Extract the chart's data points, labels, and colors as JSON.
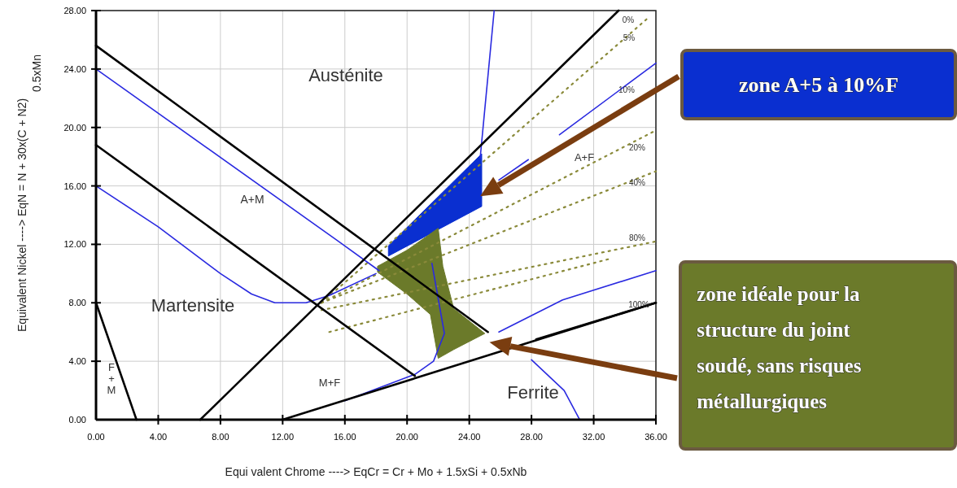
{
  "chart_data": {
    "type": "line",
    "xlabel": "Equi valent Chrome ----> EqCr = Cr + Mo + 1.5xSi + 0.5xNb",
    "ylabel": "Equivalent Nickel ----> EqN = N + 30x(C + N2)\n0.5xMn",
    "xlim": [
      0,
      36
    ],
    "ylim": [
      0,
      28
    ],
    "xticks": [
      {
        "value": 0,
        "label": "0.00"
      },
      {
        "value": 4,
        "label": "4.00"
      },
      {
        "value": 8,
        "label": "8.00"
      },
      {
        "value": 12,
        "label": "12.00"
      },
      {
        "value": 16,
        "label": "16.00"
      },
      {
        "value": 20,
        "label": "20.00"
      },
      {
        "value": 24,
        "label": "24.00"
      },
      {
        "value": 28,
        "label": "28.00"
      },
      {
        "value": 32,
        "label": "32.00"
      },
      {
        "value": 36,
        "label": "36.00"
      }
    ],
    "yticks": [
      {
        "value": 0,
        "label": "0.00"
      },
      {
        "value": 4,
        "label": "4.00"
      },
      {
        "value": 8,
        "label": "8.00"
      },
      {
        "value": 12,
        "label": "12.00"
      },
      {
        "value": 16,
        "label": "16.00"
      },
      {
        "value": 20,
        "label": "20.00"
      },
      {
        "value": 24,
        "label": "24.00"
      },
      {
        "value": 28,
        "label": "28.00"
      }
    ],
    "grid": true,
    "series": [
      {
        "color": "#8a8a3a",
        "line_style": "dotted",
        "x": [
          14.5,
          35.5
        ],
        "values": [
          8,
          27.5
        ]
      },
      {
        "color": "#8a8a3a",
        "line_style": "dotted",
        "x": [
          14.5,
          36
        ],
        "values": [
          8,
          19.8
        ]
      },
      {
        "color": "#8a8a3a",
        "line_style": "dotted",
        "x": [
          14.5,
          36
        ],
        "values": [
          8,
          17
        ]
      },
      {
        "color": "#8a8a3a",
        "line_style": "dotted",
        "x": [
          14.5,
          36
        ],
        "values": [
          7.5,
          12.2
        ]
      },
      {
        "color": "#8a8a3a",
        "line_style": "dotted",
        "x": [
          15,
          33
        ],
        "values": [
          6,
          11
        ]
      },
      {
        "color": "#2a2ae0",
        "line_style": "solid",
        "x": [
          0,
          15.6,
          18.2
        ],
        "values": [
          24,
          12.2,
          10.2
        ]
      },
      {
        "color": "#2a2ae0",
        "line_style": "solid",
        "x": [
          0,
          4,
          8,
          10,
          11.5,
          13.5,
          15,
          18
        ],
        "values": [
          16,
          13.2,
          10,
          8.6,
          8,
          8,
          8.5,
          10
        ]
      },
      {
        "color": "#2a2ae0",
        "line_style": "solid",
        "x": [
          25.6,
          24.7
        ],
        "values": [
          28,
          17.9
        ]
      },
      {
        "color": "#2a2ae0",
        "line_style": "solid",
        "x": [
          36,
          29.8
        ],
        "values": [
          24.4,
          19.5
        ]
      },
      {
        "color": "#2a2ae0",
        "line_style": "solid",
        "x": [
          27.8,
          25.9
        ],
        "values": [
          17.8,
          16.4
        ]
      },
      {
        "color": "#2a2ae0",
        "line_style": "solid",
        "x": [
          36,
          30,
          25.9
        ],
        "values": [
          10.2,
          8.2,
          6
        ]
      },
      {
        "color": "#2a2ae0",
        "line_style": "solid",
        "x": [
          28,
          30.1,
          31.1
        ],
        "values": [
          4.1,
          2,
          0
        ]
      },
      {
        "color": "#2a2ae0",
        "line_style": "solid",
        "x": [
          21.6,
          22.4,
          21.7,
          20.5,
          16
        ],
        "values": [
          10.7,
          5.9,
          4,
          3.1,
          1.3
        ]
      },
      {
        "type": "area",
        "color": "#0a2fd0",
        "x": [
          18.8,
          24.8,
          24.8,
          18.8
        ],
        "values": [
          11.9,
          18.2,
          14.6,
          11.2
        ]
      },
      {
        "type": "area",
        "color": "#6b7a2a",
        "x": [
          18.1,
          20,
          22,
          22.3,
          23,
          25,
          23,
          22,
          21.5,
          20,
          18.1
        ],
        "values": [
          10.5,
          11.6,
          13.1,
          10.5,
          7.6,
          5.9,
          4.8,
          4.2,
          7.2,
          8.6,
          10.1
        ]
      },
      {
        "color": "#000000",
        "line_style": "solid",
        "x": [
          6.7,
          33.6
        ],
        "values": [
          0,
          28
        ]
      },
      {
        "color": "#000000",
        "line_style": "solid",
        "x": [
          0,
          25.2
        ],
        "values": [
          25.6,
          6
        ]
      },
      {
        "color": "#000000",
        "line_style": "solid",
        "x": [
          0,
          20.5
        ],
        "values": [
          18.8,
          3
        ]
      },
      {
        "color": "#000000",
        "line_style": "solid",
        "x": [
          12,
          36
        ],
        "values": [
          0,
          8
        ]
      },
      {
        "color": "#000000",
        "line_style": "solid",
        "x": [
          0,
          2.6
        ],
        "values": [
          8,
          0
        ]
      },
      {
        "color": "#000000",
        "line_style": "solid",
        "x": [
          28.3,
          36
        ],
        "values": [
          5.5,
          8
        ]
      }
    ],
    "annotations": [
      "Austénite",
      "A+M",
      "Martensite",
      "M+F",
      "Ferrite",
      "A+F",
      "F\n+\nM",
      "0%",
      "5%",
      "10%",
      "20%",
      "40%",
      "80%",
      "100%",
      "zone A+5 à 10%F",
      "zone idéale pour la\nstructure du joint\nsoudé, sans risques\nmétallurgiques"
    ]
  }
}
